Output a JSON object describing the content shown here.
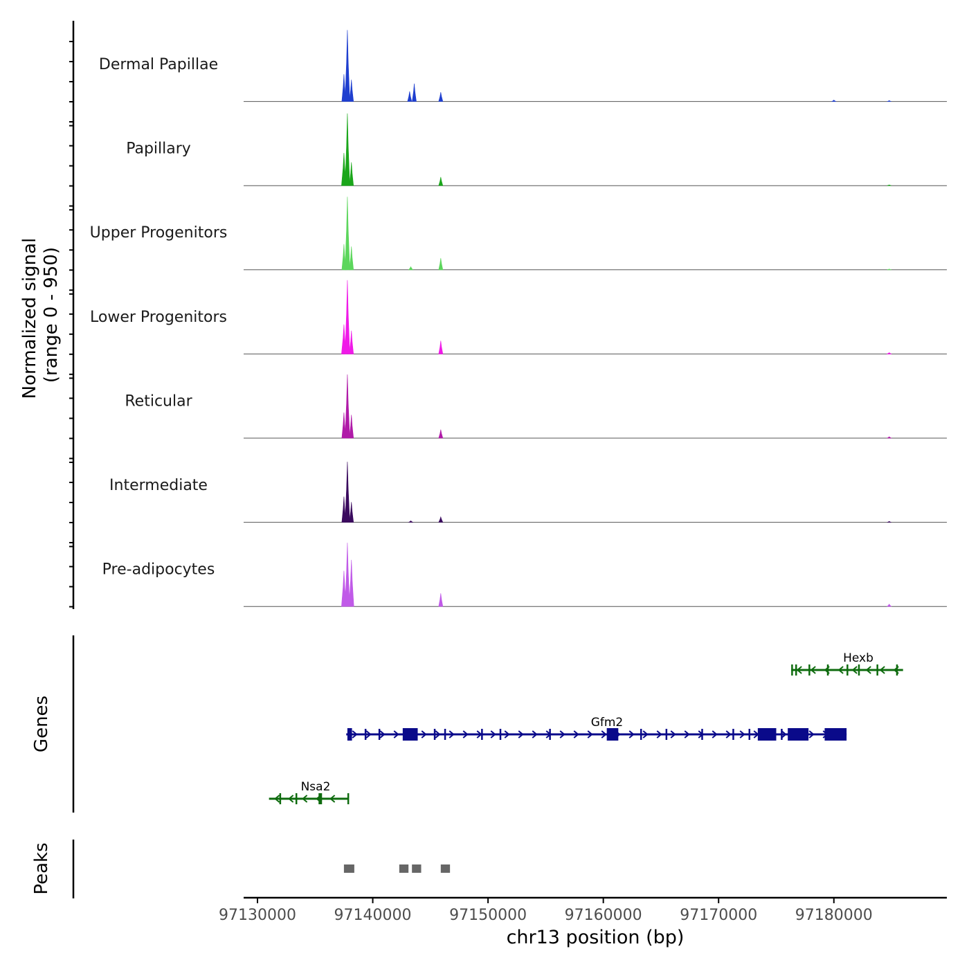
{
  "chart_data": {
    "type": "area",
    "title": "",
    "chromosome": "chr13",
    "xlabel": "chr13 position (bp)",
    "xlim": [
      97128800,
      97189800
    ],
    "x_ticks": [
      97130000,
      97140000,
      97150000,
      97160000,
      97170000,
      97180000
    ],
    "x_tick_labels": [
      "97130000",
      "97140000",
      "97150000",
      "97160000",
      "97170000",
      "97180000"
    ],
    "coverage": {
      "ylabel_line1": "Normalized signal",
      "ylabel_line2": "(range 0 - 950)",
      "ylim": [
        0,
        950
      ],
      "series": [
        {
          "name": "Dermal Papillae",
          "color": "#1f3fcf",
          "peaks": [
            [
              97137500,
              350
            ],
            [
              97137800,
              920
            ],
            [
              97138150,
              280
            ],
            [
              97143200,
              130
            ],
            [
              97143600,
              230
            ],
            [
              97145900,
              120
            ],
            [
              97180000,
              18
            ],
            [
              97184800,
              12
            ]
          ]
        },
        {
          "name": "Papillary",
          "color": "#1aa61a",
          "peaks": [
            [
              97137500,
              420
            ],
            [
              97137800,
              930
            ],
            [
              97138150,
              300
            ],
            [
              97145900,
              110
            ],
            [
              97184800,
              10
            ]
          ]
        },
        {
          "name": "Upper Progenitors",
          "color": "#5cd65c",
          "peaks": [
            [
              97137500,
              330
            ],
            [
              97137800,
              940
            ],
            [
              97138150,
              300
            ],
            [
              97143300,
              40
            ],
            [
              97145900,
              150
            ],
            [
              97184800,
              10
            ]
          ]
        },
        {
          "name": "Lower Progenitors",
          "color": "#f01ae8",
          "peaks": [
            [
              97137500,
              380
            ],
            [
              97137800,
              950
            ],
            [
              97138150,
              300
            ],
            [
              97145900,
              170
            ],
            [
              97184800,
              18
            ]
          ]
        },
        {
          "name": "Reticular",
          "color": "#b01aa8",
          "peaks": [
            [
              97137500,
              330
            ],
            [
              97137800,
              820
            ],
            [
              97138150,
              300
            ],
            [
              97145900,
              110
            ],
            [
              97184800,
              18
            ]
          ]
        },
        {
          "name": "Intermediate",
          "color": "#3a0a5e",
          "peaks": [
            [
              97137500,
              330
            ],
            [
              97137800,
              780
            ],
            [
              97138150,
              260
            ],
            [
              97143300,
              20
            ],
            [
              97145900,
              70
            ],
            [
              97184800,
              12
            ]
          ]
        },
        {
          "name": "Pre-adipocytes",
          "color": "#c05ae8",
          "peaks": [
            [
              97137500,
              460
            ],
            [
              97137800,
              820
            ],
            [
              97138150,
              600
            ],
            [
              97145900,
              170
            ],
            [
              97184800,
              30
            ]
          ]
        }
      ]
    },
    "genes": {
      "label": "Genes",
      "items": [
        {
          "name": "Hexb",
          "strand": "-",
          "start": 97176300,
          "end": 97186000,
          "color": "#0e6b0e",
          "exons": [
            [
              97176300,
              97176450
            ],
            [
              97176650,
              97176750
            ],
            [
              97177800,
              97177900
            ],
            [
              97179400,
              97179500
            ],
            [
              97181100,
              97181200
            ],
            [
              97182100,
              97182200
            ],
            [
              97183700,
              97183800
            ],
            [
              97185400,
              97185500
            ]
          ]
        },
        {
          "name": "Gfm2",
          "strand": "+",
          "start": 97137700,
          "end": 97181100,
          "color": "#0a0a8a",
          "exons": [
            [
              97137800,
              97138200
            ],
            [
              97139300,
              97139400
            ],
            [
              97140500,
              97140600
            ],
            [
              97142600,
              97143900
            ],
            [
              97145300,
              97145400
            ],
            [
              97146200,
              97146300
            ],
            [
              97149400,
              97149500
            ],
            [
              97151000,
              97151100
            ],
            [
              97155300,
              97155400
            ],
            [
              97160300,
              97161300
            ],
            [
              97163200,
              97163300
            ],
            [
              97165400,
              97165500
            ],
            [
              97168500,
              97168600
            ],
            [
              97171200,
              97171300
            ],
            [
              97172600,
              97172700
            ],
            [
              97173400,
              97175000
            ],
            [
              97175400,
              97175500
            ],
            [
              97176000,
              97177800
            ],
            [
              97179200,
              97181100
            ]
          ]
        },
        {
          "name": "Nsa2",
          "strand": "-",
          "start": 97131000,
          "end": 97137900,
          "color": "#0e6b0e",
          "exons": [
            [
              97131900,
              97132000
            ],
            [
              97133300,
              97133400
            ],
            [
              97135300,
              97135600
            ],
            [
              97137800,
              97137900
            ]
          ]
        }
      ]
    },
    "peaks": {
      "label": "Peaks",
      "color": "#666666",
      "regions": [
        [
          97137500,
          97138400
        ],
        [
          97142300,
          97143100
        ],
        [
          97143400,
          97144200
        ],
        [
          97145900,
          97146700
        ]
      ]
    }
  }
}
